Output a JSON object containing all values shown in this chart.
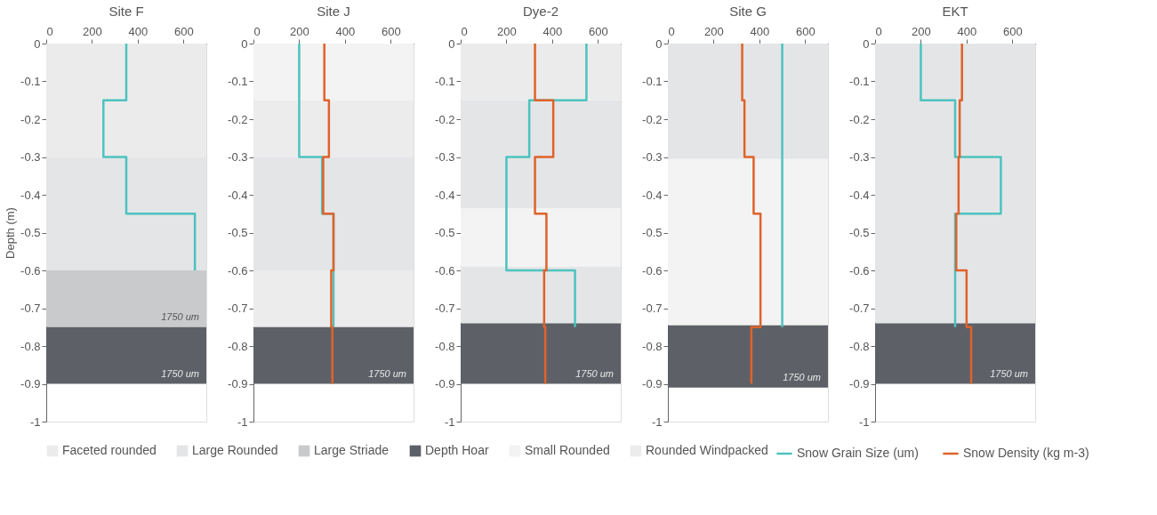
{
  "chart_data": [
    {
      "type": "line",
      "title": "Site F",
      "ylabel": "Depth (m)",
      "xlim": [
        0,
        700
      ],
      "xticks": [
        0,
        200,
        400,
        600
      ],
      "ylim": [
        -1,
        0
      ],
      "yticks": [
        0,
        -0.1,
        -0.2,
        -0.3,
        -0.4,
        -0.5,
        -0.6,
        -0.7,
        -0.8,
        -0.9,
        -1
      ],
      "legend": "bottom",
      "series": [
        {
          "name": "Snow Grain Size (um)",
          "color": "#4cc3bf",
          "x": [
            350,
            350,
            250,
            250,
            350,
            350,
            650,
            650
          ],
          "values": [
            0,
            -0.15,
            -0.15,
            -0.3,
            -0.3,
            -0.45,
            -0.45,
            -0.6
          ]
        }
      ],
      "bands": [
        {
          "axis": "y",
          "from": 0,
          "to": -0.3,
          "label": "Faceted rounded",
          "color": "#ebebeb"
        },
        {
          "axis": "y",
          "from": -0.3,
          "to": -0.6,
          "label": "Large Rounded",
          "color": "#e4e5e7"
        },
        {
          "axis": "y",
          "from": -0.6,
          "to": -0.75,
          "label": "Large Striade",
          "color": "#c9cacc"
        },
        {
          "axis": "y",
          "from": -0.75,
          "to": -0.9,
          "label": "Depth Hoar",
          "color": "#5d6167"
        }
      ],
      "annotations": [
        "1750 um",
        "1750 um"
      ]
    },
    {
      "type": "line",
      "title": "Site J",
      "xlim": [
        0,
        700
      ],
      "xticks": [
        0,
        200,
        400,
        600
      ],
      "ylim": [
        -1,
        0
      ],
      "yticks": [
        0,
        -0.1,
        -0.2,
        -0.3,
        -0.4,
        -0.5,
        -0.6,
        -0.7,
        -0.8,
        -0.9,
        -1
      ],
      "legend": "bottom",
      "series": [
        {
          "name": "Snow Grain Size (um)",
          "color": "#4cc3bf",
          "x": [
            200,
            200,
            300,
            300,
            350,
            350
          ],
          "values": [
            0,
            -0.3,
            -0.3,
            -0.45,
            -0.45,
            -0.75
          ]
        },
        {
          "name": "Snow Density (kg m-3)",
          "color": "#e0622a",
          "x": [
            310,
            310,
            330,
            330,
            305,
            305,
            350,
            350,
            340,
            340,
            345,
            345
          ],
          "values": [
            0,
            -0.15,
            -0.15,
            -0.3,
            -0.3,
            -0.45,
            -0.45,
            -0.6,
            -0.6,
            -0.75,
            -0.75,
            -0.9
          ]
        }
      ],
      "bands": [
        {
          "axis": "y",
          "from": 0,
          "to": -0.15,
          "label": "Small Rounded",
          "color": "#f3f3f3"
        },
        {
          "axis": "y",
          "from": -0.15,
          "to": -0.3,
          "label": "Rounded Windpacked",
          "color": "#ececed"
        },
        {
          "axis": "y",
          "from": -0.3,
          "to": -0.6,
          "color": "#e4e5e7"
        },
        {
          "axis": "y",
          "from": -0.6,
          "to": -0.75,
          "color": "#ececed"
        },
        {
          "axis": "y",
          "from": -0.75,
          "to": -0.9,
          "color": "#5d6167"
        }
      ],
      "annotations": [
        "1750 um"
      ]
    },
    {
      "type": "line",
      "title": "Dye-2",
      "xlim": [
        0,
        700
      ],
      "xticks": [
        0,
        200,
        400,
        600
      ],
      "ylim": [
        -1,
        0
      ],
      "yticks": [
        0,
        -0.1,
        -0.2,
        -0.3,
        -0.4,
        -0.5,
        -0.6,
        -0.7,
        -0.8,
        -0.9,
        -1
      ],
      "legend": "bottom",
      "series": [
        {
          "name": "Snow Grain Size (um)",
          "color": "#4cc3bf",
          "x": [
            550,
            550,
            300,
            300,
            200,
            200,
            500,
            500
          ],
          "values": [
            0,
            -0.15,
            -0.15,
            -0.3,
            -0.3,
            -0.6,
            -0.6,
            -0.75
          ]
        },
        {
          "name": "Snow Density (kg m-3)",
          "color": "#e0622a",
          "x": [
            325,
            325,
            405,
            405,
            325,
            325,
            375,
            375,
            365,
            365,
            370,
            370
          ],
          "values": [
            0,
            -0.15,
            -0.15,
            -0.3,
            -0.3,
            -0.45,
            -0.45,
            -0.6,
            -0.6,
            -0.75,
            -0.75,
            -0.9
          ]
        }
      ],
      "bands": [
        {
          "axis": "y",
          "from": 0,
          "to": -0.15,
          "color": "#ebebeb"
        },
        {
          "axis": "y",
          "from": -0.15,
          "to": -0.435,
          "color": "#e4e5e7"
        },
        {
          "axis": "y",
          "from": -0.435,
          "to": -0.59,
          "color": "#f3f3f3"
        },
        {
          "axis": "y",
          "from": -0.59,
          "to": -0.74,
          "color": "#e4e5e7"
        },
        {
          "axis": "y",
          "from": -0.74,
          "to": -0.9,
          "color": "#5d6167"
        }
      ],
      "annotations": [
        "1750 um"
      ]
    },
    {
      "type": "line",
      "title": "Site G",
      "xlim": [
        0,
        700
      ],
      "xticks": [
        0,
        200,
        400,
        600
      ],
      "ylim": [
        -1,
        0
      ],
      "yticks": [
        0,
        -0.1,
        -0.2,
        -0.3,
        -0.4,
        -0.5,
        -0.6,
        -0.7,
        -0.8,
        -0.9,
        -1
      ],
      "legend": "bottom",
      "series": [
        {
          "name": "Snow Grain Size (um)",
          "color": "#4cc3bf",
          "x": [
            500,
            500
          ],
          "values": [
            0,
            -0.75
          ]
        },
        {
          "name": "Snow Density (kg m-3)",
          "color": "#e0622a",
          "x": [
            325,
            325,
            335,
            335,
            375,
            375,
            405,
            405,
            365,
            365
          ],
          "values": [
            0,
            -0.15,
            -0.15,
            -0.3,
            -0.3,
            -0.45,
            -0.45,
            -0.75,
            -0.75,
            -0.9
          ]
        }
      ],
      "bands": [
        {
          "axis": "y",
          "from": 0,
          "to": -0.305,
          "color": "#e4e5e7"
        },
        {
          "axis": "y",
          "from": -0.305,
          "to": -0.745,
          "color": "#f3f3f3"
        },
        {
          "axis": "y",
          "from": -0.745,
          "to": -0.91,
          "color": "#5d6167"
        }
      ],
      "annotations": [
        "1750 um"
      ]
    },
    {
      "type": "line",
      "title": "EKT",
      "xlim": [
        0,
        700
      ],
      "xticks": [
        0,
        200,
        400,
        600
      ],
      "ylim": [
        -1,
        0
      ],
      "yticks": [
        0,
        -0.1,
        -0.2,
        -0.3,
        -0.4,
        -0.5,
        -0.6,
        -0.7,
        -0.8,
        -0.9,
        -1
      ],
      "legend": "bottom",
      "series": [
        {
          "name": "Snow Grain Size (um)",
          "color": "#4cc3bf",
          "x": [
            200,
            200,
            350,
            350,
            550,
            550,
            350,
            350
          ],
          "values": [
            0,
            -0.15,
            -0.15,
            -0.3,
            -0.3,
            -0.45,
            -0.45,
            -0.75
          ]
        },
        {
          "name": "Snow Density (kg m-3)",
          "color": "#e0622a",
          "x": [
            380,
            380,
            370,
            370,
            365,
            365,
            355,
            355,
            400,
            400,
            420,
            420
          ],
          "values": [
            0,
            -0.15,
            -0.15,
            -0.3,
            -0.3,
            -0.45,
            -0.45,
            -0.6,
            -0.6,
            -0.75,
            -0.75,
            -0.9
          ]
        }
      ],
      "bands": [
        {
          "axis": "y",
          "from": 0,
          "to": -0.74,
          "color": "#e4e5e7"
        },
        {
          "axis": "y",
          "from": -0.74,
          "to": -0.9,
          "color": "#5d6167"
        }
      ],
      "annotations": [
        "1750 um"
      ]
    }
  ]
}
